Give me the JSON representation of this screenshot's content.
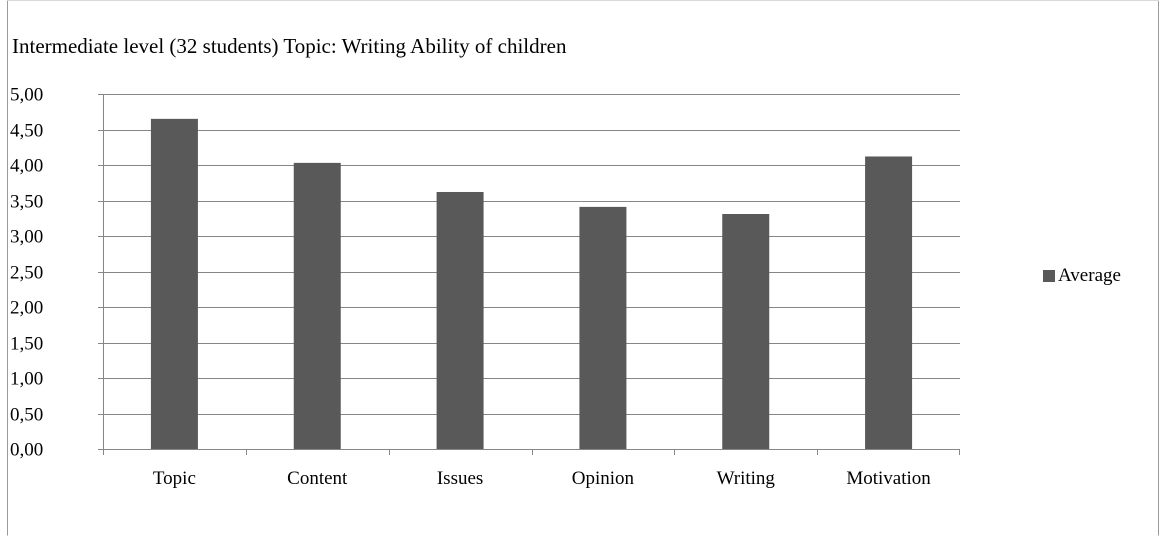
{
  "chart_data": {
    "type": "bar",
    "title": "Intermediate level (32 students) Topic: Writing Ability of children",
    "categories": [
      "Topic",
      "Content",
      "Issues",
      "Opinion",
      "Writing",
      "Motivation"
    ],
    "series": [
      {
        "name": "Average",
        "values": [
          4.65,
          4.03,
          3.62,
          3.41,
          3.31,
          4.12
        ]
      }
    ],
    "ylim": [
      0,
      5
    ],
    "yticks": [
      "0,00",
      "0,50",
      "1,00",
      "1,50",
      "2,00",
      "2,50",
      "3,00",
      "3,50",
      "4,00",
      "4,50",
      "5,00"
    ],
    "xlabel": "",
    "ylabel": "",
    "grid": true,
    "legend_position": "right",
    "colors": {
      "bar": "#595959",
      "grid": "#868686",
      "axis": "#868686"
    }
  }
}
